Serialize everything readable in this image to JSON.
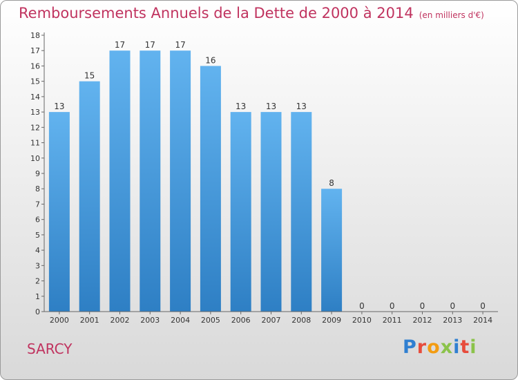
{
  "title": "Remboursements Annuels de la Dette de 2000 à 2014",
  "unit_note": "(en milliers d'€)",
  "commune": "SARCY",
  "logo": {
    "text": "Proxiti",
    "letter_colors": [
      "#2f7fd1",
      "#e74c3c",
      "#f39c12",
      "#8bc34a",
      "#2f7fd1",
      "#e74c3c",
      "#8bc34a"
    ]
  },
  "colors": {
    "title": "#c0335f",
    "bar_top": "#62b3ef",
    "bar_bottom": "#2e7fc4"
  },
  "chart_data": {
    "type": "bar",
    "title": "Remboursements Annuels de la Dette de 2000 à 2014",
    "xlabel": "",
    "ylabel": "",
    "categories": [
      "2000",
      "2001",
      "2002",
      "2003",
      "2004",
      "2005",
      "2006",
      "2007",
      "2008",
      "2009",
      "2010",
      "2011",
      "2012",
      "2013",
      "2014"
    ],
    "values": [
      13,
      15,
      17,
      17,
      17,
      16,
      13,
      13,
      13,
      8,
      0,
      0,
      0,
      0,
      0
    ],
    "data_labels": [
      "13",
      "15",
      "17",
      "17",
      "17",
      "16",
      "13",
      "13",
      "13",
      "8",
      "0",
      "0",
      "0",
      "0",
      "0"
    ],
    "ylim": [
      0,
      18
    ],
    "y_ticks": [
      "0",
      "1",
      "2",
      "3",
      "4",
      "5",
      "6",
      "7",
      "8",
      "9",
      "10",
      "11",
      "12",
      "13",
      "14",
      "15",
      "16",
      "17",
      "18"
    ],
    "grid": false,
    "legend": "none"
  }
}
